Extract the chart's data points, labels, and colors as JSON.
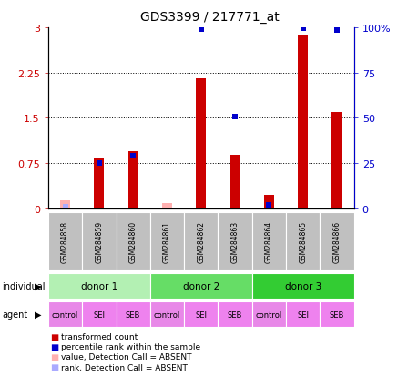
{
  "title": "GDS3399 / 217771_at",
  "samples": [
    "GSM284858",
    "GSM284859",
    "GSM284860",
    "GSM284861",
    "GSM284862",
    "GSM284863",
    "GSM284864",
    "GSM284865",
    "GSM284866"
  ],
  "transformed_count": [
    0.0,
    0.82,
    0.95,
    0.0,
    2.15,
    0.88,
    0.22,
    2.88,
    1.6
  ],
  "percentile_rank_left": [
    0.0,
    0.75,
    0.87,
    0.0,
    2.97,
    1.52,
    0.05,
    2.98,
    2.95
  ],
  "absent_value": [
    0.13,
    0.0,
    0.0,
    0.09,
    0.0,
    0.0,
    0.0,
    0.0,
    0.0
  ],
  "absent_rank": [
    0.03,
    0.0,
    0.0,
    0.0,
    0.0,
    0.0,
    0.0,
    0.0,
    0.0
  ],
  "absent_mask": [
    true,
    false,
    false,
    true,
    false,
    false,
    false,
    false,
    false
  ],
  "donors": [
    {
      "label": "donor 1",
      "start": 0,
      "end": 2,
      "color": "#b3f0b3"
    },
    {
      "label": "donor 2",
      "start": 3,
      "end": 5,
      "color": "#66dd66"
    },
    {
      "label": "donor 3",
      "start": 6,
      "end": 8,
      "color": "#33cc33"
    }
  ],
  "agents": [
    "control",
    "SEI",
    "SEB",
    "control",
    "SEI",
    "SEB",
    "control",
    "SEI",
    "SEB"
  ],
  "agent_colors": [
    "#e888e8",
    "#ee82ee",
    "#ee82ee",
    "#e888e8",
    "#ee82ee",
    "#ee82ee",
    "#e888e8",
    "#ee82ee",
    "#ee82ee"
  ],
  "ylim_left": [
    0,
    3
  ],
  "yticks_left": [
    0,
    0.75,
    1.5,
    2.25,
    3.0
  ],
  "ytick_labels_left": [
    "0",
    "0.75",
    "1.5",
    "2.25",
    "3"
  ],
  "yticks_right_vals": [
    0,
    0.75,
    1.5,
    2.25,
    3.0
  ],
  "ytick_labels_right": [
    "0",
    "25",
    "50",
    "75",
    "100%"
  ],
  "bar_color_red": "#cc0000",
  "bar_color_absent": "#ffb0b0",
  "rank_color_blue": "#0000cc",
  "rank_color_absent": "#aaaaff",
  "bar_width": 0.3,
  "rank_marker_size": 20,
  "bg_color": "#ffffff",
  "axis_label_color_left": "#cc0000",
  "axis_label_color_right": "#0000cc",
  "sample_bg_color": "#c0c0c0",
  "legend_items": [
    {
      "color": "#cc0000",
      "label": "transformed count"
    },
    {
      "color": "#0000cc",
      "label": "percentile rank within the sample"
    },
    {
      "color": "#ffb0b0",
      "label": "value, Detection Call = ABSENT"
    },
    {
      "color": "#aaaaff",
      "label": "rank, Detection Call = ABSENT"
    }
  ]
}
